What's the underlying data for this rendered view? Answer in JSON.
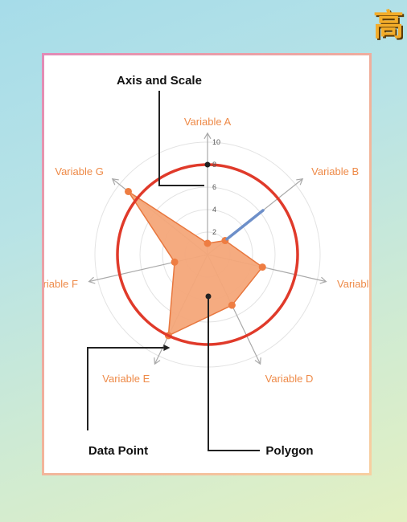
{
  "logo": {
    "glyph": "高"
  },
  "diagram": {
    "callouts": {
      "axis_scale": "Axis and Scale",
      "data_point": "Data Point",
      "polygon": "Polygon"
    },
    "axes": [
      "Variable A",
      "Variable B",
      "Variable C",
      "Variable D",
      "Variable E",
      "Variable F",
      "Variable G"
    ],
    "scale_ticks": [
      "2",
      "4",
      "6",
      "8",
      "10"
    ],
    "values": [
      1,
      2,
      5,
      5,
      8,
      3,
      9
    ],
    "scale_max": 10,
    "colors": {
      "polygon_fill": "#f4a679",
      "polygon_stroke": "#e8773e",
      "point": "#ee7d42",
      "highlight_circle": "#e03a2a",
      "scale_highlight": "#6d8fc9",
      "axis": "#a9a9a9",
      "grid": "#e3e3e3",
      "label": "#ee8a48"
    }
  }
}
